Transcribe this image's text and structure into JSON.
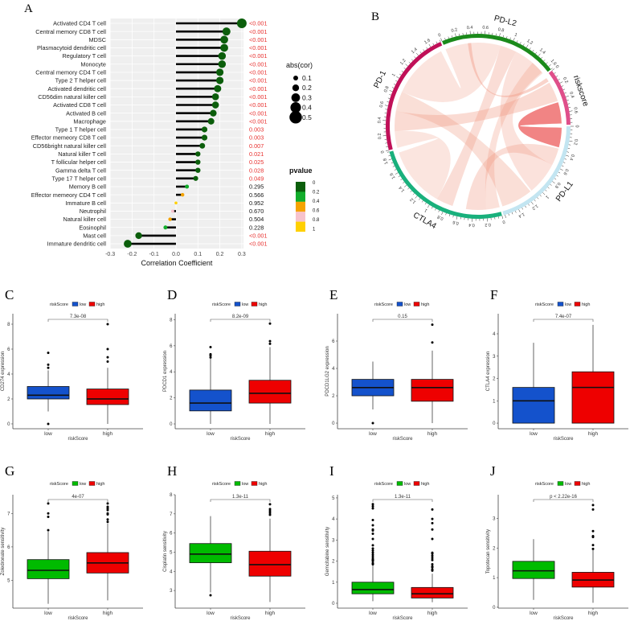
{
  "chart_data": [
    {
      "panel": "A",
      "type": "lollipop",
      "xlabel": "Correlation Coefficient",
      "xticks": [
        -0.3,
        -0.2,
        -0.1,
        0.0,
        0.1,
        0.2,
        0.3
      ],
      "size_legend": {
        "title": "abs(cor)",
        "values": [
          0.1,
          0.2,
          0.3,
          0.4,
          0.5
        ]
      },
      "color_legend": {
        "title": "pvalue",
        "labels": [
          "0",
          "0.2",
          "0.4",
          "0.6",
          "0.8",
          "1"
        ],
        "colors": [
          "#0b5e0b",
          "#12ad2b",
          "#f5a300",
          "#f7c2cc",
          "#ffd000"
        ]
      },
      "rows": [
        {
          "cell": "Activated CD4 T cell",
          "cor": 0.3,
          "p": "<0.001",
          "pnum": 0.0005
        },
        {
          "cell": "Central memory CD8 T cell",
          "cor": 0.23,
          "p": "<0.001",
          "pnum": 0.0005
        },
        {
          "cell": "MDSC",
          "cor": 0.22,
          "p": "<0.001",
          "pnum": 0.0005
        },
        {
          "cell": "Plasmacytoid dendritic cell",
          "cor": 0.22,
          "p": "<0.001",
          "pnum": 0.0005
        },
        {
          "cell": "Regulatory T cell",
          "cor": 0.21,
          "p": "<0.001",
          "pnum": 0.0005
        },
        {
          "cell": "Monocyte",
          "cor": 0.21,
          "p": "<0.001",
          "pnum": 0.0005
        },
        {
          "cell": "Central memory CD4 T cell",
          "cor": 0.2,
          "p": "<0.001",
          "pnum": 0.0005
        },
        {
          "cell": "Type 2 T helper cell",
          "cor": 0.2,
          "p": "<0.001",
          "pnum": 0.0005
        },
        {
          "cell": "Activated dendritic cell",
          "cor": 0.19,
          "p": "<0.001",
          "pnum": 0.0005
        },
        {
          "cell": "CD56dim natural killer cell",
          "cor": 0.18,
          "p": "<0.001",
          "pnum": 0.0005
        },
        {
          "cell": "Activated CD8 T cell",
          "cor": 0.18,
          "p": "<0.001",
          "pnum": 0.0005
        },
        {
          "cell": "Activated B cell",
          "cor": 0.17,
          "p": "<0.001",
          "pnum": 0.0005
        },
        {
          "cell": "Macrophage",
          "cor": 0.16,
          "p": "<0.001",
          "pnum": 0.0005
        },
        {
          "cell": "Type 1 T helper cell",
          "cor": 0.13,
          "p": "0.003",
          "pnum": 0.003
        },
        {
          "cell": "Effector memeory CD8 T cell",
          "cor": 0.13,
          "p": "0.003",
          "pnum": 0.003
        },
        {
          "cell": "CD56bright natural killer cell",
          "cor": 0.12,
          "p": "0.007",
          "pnum": 0.007
        },
        {
          "cell": "Natural killer T cell",
          "cor": 0.1,
          "p": "0.021",
          "pnum": 0.021
        },
        {
          "cell": "T follicular helper cell",
          "cor": 0.1,
          "p": "0.025",
          "pnum": 0.025
        },
        {
          "cell": "Gamma delta T cell",
          "cor": 0.1,
          "p": "0.028",
          "pnum": 0.028
        },
        {
          "cell": "Type 17 T helper cell",
          "cor": 0.09,
          "p": "0.049",
          "pnum": 0.049
        },
        {
          "cell": "Memory B cell",
          "cor": 0.05,
          "p": "0.295",
          "pnum": 0.295
        },
        {
          "cell": "Effector memeory CD4 T cell",
          "cor": 0.03,
          "p": "0.566",
          "pnum": 0.566
        },
        {
          "cell": "Immature  B cell",
          "cor": 0.0,
          "p": "0.952",
          "pnum": 0.952
        },
        {
          "cell": "Neutrophil",
          "cor": -0.015,
          "p": "0.670",
          "pnum": 0.67
        },
        {
          "cell": "Natural killer cell",
          "cor": -0.027,
          "p": "0.504",
          "pnum": 0.504
        },
        {
          "cell": "Eosinophil",
          "cor": -0.048,
          "p": "0.228",
          "pnum": 0.228
        },
        {
          "cell": "Mast cell",
          "cor": -0.17,
          "p": "<0.001",
          "pnum": 0.0005
        },
        {
          "cell": "Immature dendritic cell",
          "cor": -0.22,
          "p": "<0.001",
          "pnum": 0.0005
        }
      ],
      "sig_color": "#e8312f"
    },
    {
      "panel": "B",
      "type": "chord",
      "sectors": [
        {
          "name": "PD-L2",
          "max": 1.65,
          "color": "#1b8a1b",
          "ticks": [
            "0",
            "0.2",
            "0.4",
            "0.6",
            "0.8",
            "1",
            "1.2",
            "1.4",
            "1.6"
          ]
        },
        {
          "name": "riskscore",
          "max": 0.78,
          "color": "#df4f8a",
          "ticks": [
            "0",
            "0.2",
            "0.4",
            "0.6"
          ]
        },
        {
          "name": "PD-L1",
          "max": 1.62,
          "color": "#c3e5f1",
          "ticks": [
            "0",
            "0.2",
            "0.4",
            "0.6",
            "0.8",
            "1",
            "1.2",
            "1.4"
          ]
        },
        {
          "name": "CTLA4",
          "max": 1.9,
          "color": "#19b07c",
          "ticks": [
            "0",
            "0.2",
            "0.4",
            "0.6",
            "0.8",
            "1",
            "1.2",
            "1.4",
            "1.6",
            "1.8"
          ]
        },
        {
          "name": "PD-1",
          "max": 1.75,
          "color": "#c01058",
          "ticks": [
            "0",
            "0.2",
            "0.4",
            "0.6",
            "0.8",
            "1",
            "1.2",
            "1.4",
            "1.6"
          ]
        }
      ],
      "links": [
        {
          "from": [
            "PD-L2",
            0.0,
            0.85
          ],
          "to": [
            "PD-1",
            0.85,
            1.7
          ],
          "strength": 0.25
        },
        {
          "from": [
            "PD-L2",
            0.85,
            1.1
          ],
          "to": [
            "CTLA4",
            0.7,
            0.95
          ],
          "strength": 0.45
        },
        {
          "from": [
            "PD-L2",
            1.1,
            1.62
          ],
          "to": [
            "PD-L1",
            0.6,
            1.1
          ],
          "strength": 0.3
        },
        {
          "from": [
            "PD-L2",
            0.35,
            0.4
          ],
          "to": [
            "riskscore",
            0.04,
            0.1
          ],
          "strength": 0.7
        },
        {
          "from": [
            "riskscore",
            0.12,
            0.42
          ],
          "to": [
            "PD-1",
            0.25,
            0.55
          ],
          "strength": 0.5
        },
        {
          "from": [
            "riskscore",
            0.44,
            0.76
          ],
          "to": [
            "PD-L1",
            0.02,
            0.32
          ],
          "strength": 0.95
        },
        {
          "from": [
            "PD-L1",
            0.34,
            0.6
          ],
          "to": [
            "CTLA4",
            0.2,
            0.5
          ],
          "strength": 0.45
        },
        {
          "from": [
            "PD-L1",
            1.12,
            1.6
          ],
          "to": [
            "PD-1",
            0.55,
            0.85
          ],
          "strength": 0.4
        },
        {
          "from": [
            "CTLA4",
            0.95,
            1.85
          ],
          "to": [
            "PD-1",
            0.0,
            0.25
          ],
          "strength": 0.22
        },
        {
          "from": [
            "CTLA4",
            0.0,
            0.2
          ],
          "to": [
            "PD-L2",
            1.4,
            1.6
          ],
          "strength": 0.35
        }
      ]
    },
    {
      "panel": "C",
      "type": "boxplot",
      "ylabel": "CD274 expression",
      "xlabel": "riskScore",
      "legend_title": "riskScore",
      "groups": [
        "low",
        "high"
      ],
      "colors": [
        "#1452cc",
        "#ee0000"
      ],
      "p": "7.3e-08",
      "yticks": [
        0,
        2,
        4,
        6,
        8
      ],
      "ylim": [
        -0.39,
        8.84
      ],
      "boxes": [
        {
          "min": 1.0,
          "q1": 2.0,
          "median": 2.3,
          "q3": 3.0,
          "max": 4.3,
          "outliers": [
            0,
            4.5,
            4.75,
            5.7
          ]
        },
        {
          "min": 0,
          "q1": 1.55,
          "median": 2.0,
          "q3": 2.8,
          "max": 4.5,
          "outliers": [
            5.0,
            5.35,
            6.0,
            8.0
          ]
        }
      ]
    },
    {
      "panel": "D",
      "type": "boxplot",
      "ylabel": "PDCD1 expression",
      "xlabel": "riskScore",
      "legend_title": "riskScore",
      "groups": [
        "low",
        "high"
      ],
      "colors": [
        "#1452cc",
        "#ee0000"
      ],
      "p": "8.2e-09",
      "yticks": [
        0,
        2,
        4,
        6,
        8
      ],
      "ylim": [
        -0.37,
        8.46
      ],
      "boxes": [
        {
          "min": 0,
          "q1": 1.0,
          "median": 1.6,
          "q3": 2.6,
          "max": 5.0,
          "outliers": [
            5.1,
            5.25,
            5.35,
            5.9
          ]
        },
        {
          "min": 0,
          "q1": 1.6,
          "median": 2.35,
          "q3": 3.35,
          "max": 5.9,
          "outliers": [
            6.15,
            6.35,
            7.7
          ]
        }
      ]
    },
    {
      "panel": "E",
      "type": "boxplot",
      "ylabel": "PDCD1LG2 expression",
      "xlabel": "riskScore",
      "legend_title": "riskScore",
      "groups": [
        "low",
        "high"
      ],
      "colors": [
        "#1452cc",
        "#ee0000"
      ],
      "p": "0.15",
      "yticks": [
        0,
        2,
        4,
        6
      ],
      "ylim": [
        -0.41,
        8.0
      ],
      "boxes": [
        {
          "min": 1.0,
          "q1": 2.0,
          "median": 2.6,
          "q3": 3.2,
          "max": 4.5,
          "outliers": [
            0
          ]
        },
        {
          "min": 0,
          "q1": 1.6,
          "median": 2.6,
          "q3": 3.2,
          "max": 5.3,
          "outliers": [
            5.9,
            7.2
          ]
        }
      ]
    },
    {
      "panel": "F",
      "type": "boxplot",
      "ylabel": "CTLA4 expression",
      "xlabel": "riskScore",
      "legend_title": "riskScore",
      "groups": [
        "low",
        "high"
      ],
      "colors": [
        "#1452cc",
        "#ee0000"
      ],
      "p": "7.4e-07",
      "yticks": [
        0,
        1,
        2,
        3,
        4
      ],
      "ylim": [
        -0.25,
        4.9
      ],
      "boxes": [
        {
          "min": 0,
          "q1": 0,
          "median": 1.0,
          "q3": 1.6,
          "max": 3.6,
          "outliers": []
        },
        {
          "min": 0,
          "q1": 0,
          "median": 1.6,
          "q3": 2.3,
          "max": 4.4,
          "outliers": []
        }
      ]
    },
    {
      "panel": "G",
      "type": "boxplot",
      "ylabel": "Zoledronate sensitivity",
      "xlabel": "riskScore",
      "legend_title": "riskScore",
      "groups": [
        "low",
        "high"
      ],
      "colors": [
        "#00bb00",
        "#ee0000"
      ],
      "p": "4e-07",
      "yticks": [
        5,
        6,
        7
      ],
      "ylim": [
        4.17,
        7.56
      ],
      "boxes": [
        {
          "min": 4.3,
          "q1": 5.05,
          "median": 5.3,
          "q3": 5.62,
          "max": 6.45,
          "outliers": [
            6.5,
            6.9,
            7.0,
            7.3
          ]
        },
        {
          "min": 4.4,
          "q1": 5.22,
          "median": 5.52,
          "q3": 5.83,
          "max": 6.7,
          "outliers": [
            6.75,
            6.82,
            6.97,
            7.0,
            7.1,
            7.15,
            7.2,
            7.3
          ]
        }
      ]
    },
    {
      "panel": "H",
      "type": "boxplot",
      "ylabel": "Cisplatin sensitivity",
      "xlabel": "riskScore",
      "legend_title": "riskScore",
      "groups": [
        "low",
        "high"
      ],
      "colors": [
        "#00bb00",
        "#ee0000"
      ],
      "p": "1.3e-11",
      "yticks": [
        3,
        4,
        5,
        6,
        7,
        8
      ],
      "ylim": [
        2.08,
        8.0
      ],
      "boxes": [
        {
          "min": 2.9,
          "q1": 4.45,
          "median": 4.9,
          "q3": 5.45,
          "max": 6.88,
          "outliers": [
            2.75
          ]
        },
        {
          "min": 2.4,
          "q1": 3.75,
          "median": 4.35,
          "q3": 5.05,
          "max": 6.75,
          "outliers": [
            6.95,
            7.05,
            7.15,
            7.25,
            7.5
          ]
        }
      ]
    },
    {
      "panel": "I",
      "type": "boxplot",
      "ylabel": "Gemcitabine sensitivity",
      "xlabel": "riskScore",
      "legend_title": "riskScore",
      "groups": [
        "low",
        "high"
      ],
      "colors": [
        "#00bb00",
        "#ee0000"
      ],
      "p": "1.3e-11",
      "yticks": [
        0,
        1,
        2,
        3,
        4,
        5
      ],
      "ylim": [
        -0.23,
        5.15
      ],
      "boxes": [
        {
          "min": 0.1,
          "q1": 0.45,
          "median": 0.65,
          "q3": 1.0,
          "max": 1.8,
          "outliers": [
            1.85,
            1.9,
            2.0,
            2.05,
            2.1,
            2.2,
            2.3,
            2.4,
            2.5,
            2.6,
            2.75,
            3.05,
            3.3,
            3.45,
            3.5,
            3.7,
            3.95,
            4.5,
            4.6,
            4.7
          ]
        },
        {
          "min": 0.05,
          "q1": 0.25,
          "median": 0.45,
          "q3": 0.75,
          "max": 1.4,
          "outliers": [
            1.55,
            1.6,
            1.7,
            1.75,
            1.85,
            2.05,
            2.15,
            2.25,
            2.35,
            2.4,
            3.05,
            3.5,
            3.8,
            4.0,
            4.45
          ]
        }
      ]
    },
    {
      "panel": "J",
      "type": "boxplot",
      "ylabel": "Topotecan sensitivity",
      "xlabel": "riskScore",
      "legend_title": "riskScore",
      "groups": [
        "low",
        "high"
      ],
      "colors": [
        "#00bb00",
        "#ee0000"
      ],
      "p": "p < 2.22e-16",
      "yticks": [
        0,
        1,
        2,
        3
      ],
      "ylim": [
        -0.03,
        3.8
      ],
      "boxes": [
        {
          "min": 0.25,
          "q1": 0.97,
          "median": 1.23,
          "q3": 1.55,
          "max": 2.3,
          "outliers": []
        },
        {
          "min": 0.15,
          "q1": 0.68,
          "median": 0.92,
          "q3": 1.18,
          "max": 1.95,
          "outliers": [
            1.97,
            2.1,
            2.37,
            2.4,
            2.57,
            3.3,
            3.45
          ]
        }
      ]
    }
  ]
}
